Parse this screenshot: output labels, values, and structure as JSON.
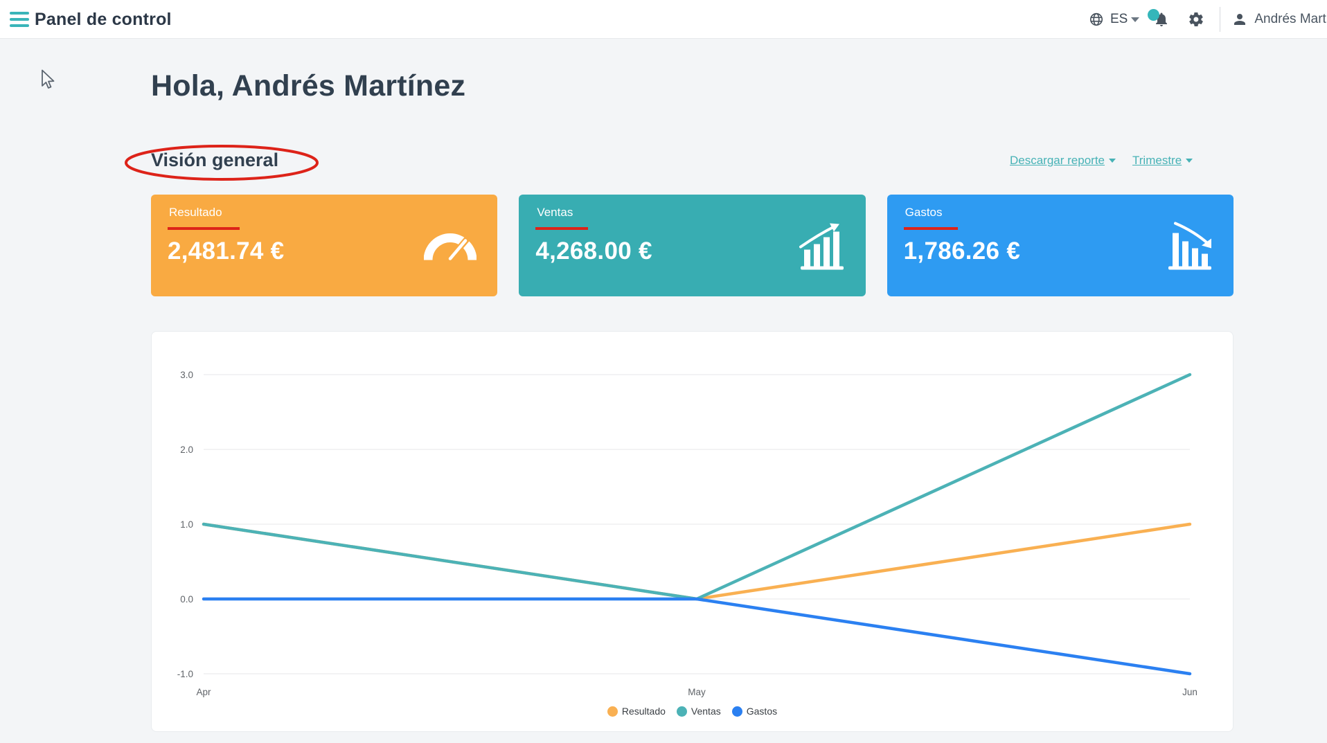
{
  "topbar": {
    "title": "Panel de control",
    "language": "ES",
    "user_name": "Andrés Martínez"
  },
  "main": {
    "greeting": "Hola, Andrés Martínez",
    "section_title": "Visión general",
    "download_report_label": "Descargar reporte",
    "period_label": "Trimestre"
  },
  "cards": [
    {
      "label": "Resultado",
      "value": "2,481.74 €",
      "color": "#f9aa42",
      "icon": "gauge-icon"
    },
    {
      "label": "Ventas",
      "value": "4,268.00 €",
      "color": "#38adb2",
      "icon": "bar-chart-up-icon"
    },
    {
      "label": "Gastos",
      "value": "1,786.26 €",
      "color": "#2e9bf2",
      "icon": "bar-chart-down-icon"
    }
  ],
  "annotation_color": "#dd2319",
  "chart_data": {
    "type": "line",
    "x": [
      "Apr",
      "May",
      "Jun"
    ],
    "series": [
      {
        "name": "Resultado",
        "color": "#f9b052",
        "values": [
          1.0,
          0.0,
          1.0
        ]
      },
      {
        "name": "Ventas",
        "color": "#4cb2b6",
        "values": [
          1.0,
          0.0,
          3.0
        ]
      },
      {
        "name": "Gastos",
        "color": "#2b80f1",
        "values": [
          0.0,
          0.0,
          -1.0
        ]
      }
    ],
    "ylim": [
      -1.0,
      3.0
    ],
    "yticks": [
      3.0,
      2.0,
      1.0,
      0.0,
      -1.0
    ],
    "grid": true,
    "legend_position": "bottom"
  }
}
